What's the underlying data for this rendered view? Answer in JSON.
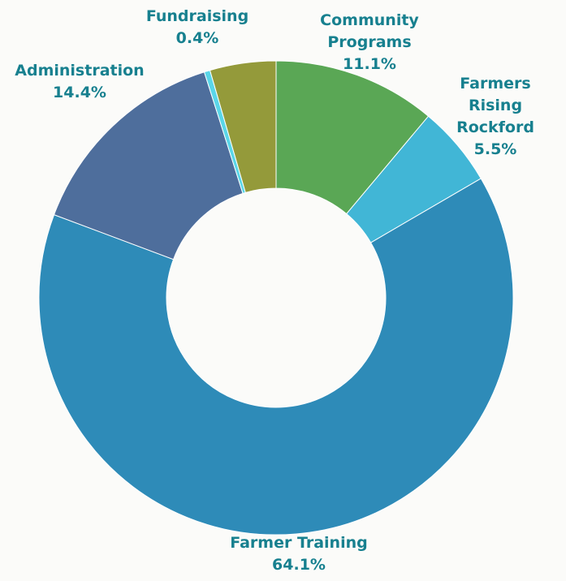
{
  "chart_data": {
    "type": "donut",
    "categories": [
      "Community Programs",
      "Farmers Rising Rockford",
      "Farmer Training",
      "Administration",
      "Fundraising",
      null
    ],
    "values": [
      11.1,
      5.5,
      64.1,
      14.4,
      0.4,
      4.5
    ],
    "value_labels": [
      "11.1%",
      "5.5%",
      "64.1%",
      "14.4%",
      "0.4%",
      null
    ],
    "colors": [
      "#5aa755",
      "#41b6d6",
      "#2e8bb8",
      "#4e6e9c",
      "#5ad6e8",
      "#949a3a"
    ]
  }
}
